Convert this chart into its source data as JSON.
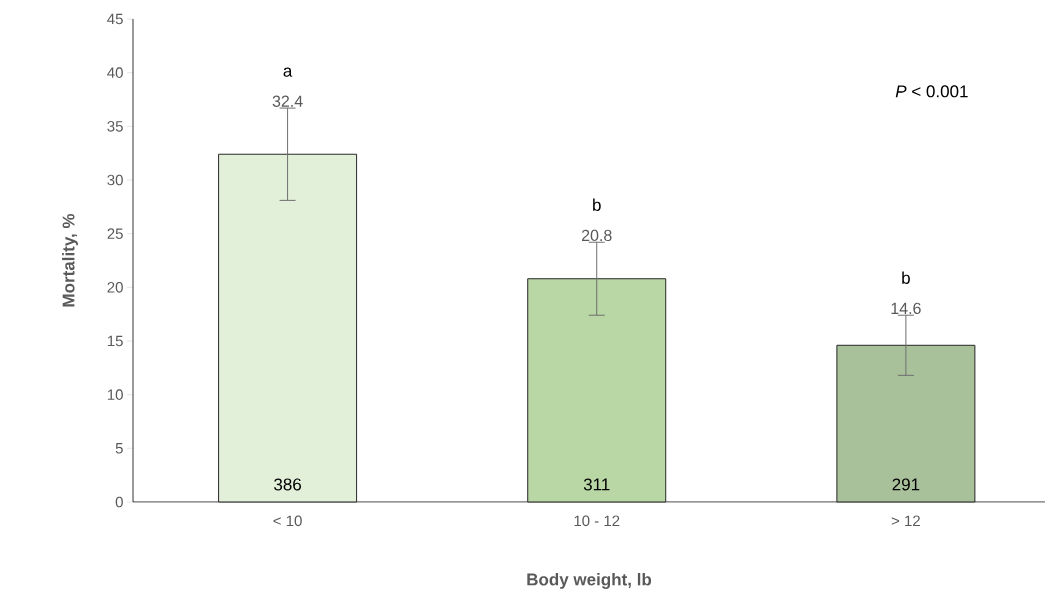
{
  "chart_data": {
    "type": "bar",
    "xlabel": "Body weight, lb",
    "ylabel": "Mortality, %",
    "categories": [
      "< 10",
      "10 - 12",
      "> 12"
    ],
    "values": [
      32.4,
      20.8,
      14.6
    ],
    "errors": [
      4.3,
      3.4,
      2.8
    ],
    "colors": [
      "#e2efd9",
      "#b9d7a4",
      "#a9c19a"
    ],
    "value_labels": [
      "32.4",
      "20.8",
      "14.6"
    ],
    "ylim": [
      0,
      45
    ],
    "yticks": [
      0,
      5,
      10,
      15,
      20,
      25,
      30,
      35,
      40,
      45
    ],
    "grid": false,
    "annotations": [
      "a",
      "b",
      "b",
      "386",
      "311",
      "291",
      "*P* < 0.001"
    ]
  }
}
